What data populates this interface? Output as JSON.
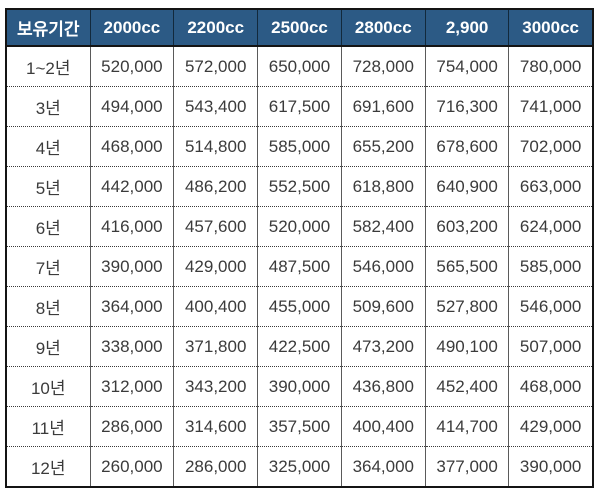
{
  "chart_data": {
    "type": "table",
    "title": "",
    "header": {
      "period_label": "보유기간",
      "columns": [
        "2000cc",
        "2200cc",
        "2500cc",
        "2800cc",
        "2,900",
        "3000cc"
      ]
    },
    "rows": [
      {
        "period": "1~2년",
        "values": [
          "520,000",
          "572,000",
          "650,000",
          "728,000",
          "754,000",
          "780,000"
        ]
      },
      {
        "period": "3년",
        "values": [
          "494,000",
          "543,400",
          "617,500",
          "691,600",
          "716,300",
          "741,000"
        ]
      },
      {
        "period": "4년",
        "values": [
          "468,000",
          "514,800",
          "585,000",
          "655,200",
          "678,600",
          "702,000"
        ]
      },
      {
        "period": "5년",
        "values": [
          "442,000",
          "486,200",
          "552,500",
          "618,800",
          "640,900",
          "663,000"
        ]
      },
      {
        "period": "6년",
        "values": [
          "416,000",
          "457,600",
          "520,000",
          "582,400",
          "603,200",
          "624,000"
        ]
      },
      {
        "period": "7년",
        "values": [
          "390,000",
          "429,000",
          "487,500",
          "546,000",
          "565,500",
          "585,000"
        ]
      },
      {
        "period": "8년",
        "values": [
          "364,000",
          "400,400",
          "455,000",
          "509,600",
          "527,800",
          "546,000"
        ]
      },
      {
        "period": "9년",
        "values": [
          "338,000",
          "371,800",
          "422,500",
          "473,200",
          "490,100",
          "507,000"
        ]
      },
      {
        "period": "10년",
        "values": [
          "312,000",
          "343,200",
          "390,000",
          "436,800",
          "452,400",
          "468,000"
        ]
      },
      {
        "period": "11년",
        "values": [
          "286,000",
          "314,600",
          "357,500",
          "400,400",
          "414,700",
          "429,000"
        ]
      },
      {
        "period": "12년",
        "values": [
          "260,000",
          "286,000",
          "325,000",
          "364,000",
          "377,000",
          "390,000"
        ]
      }
    ],
    "colors": {
      "header_bg": "#2C5A85",
      "header_text": "#FFFFFF",
      "body_text": "#3B3B3B",
      "outer_border": "#141414",
      "grid_vertical": "#5A5A5A",
      "grid_horizontal_dotted": "#3A3A3A"
    }
  }
}
